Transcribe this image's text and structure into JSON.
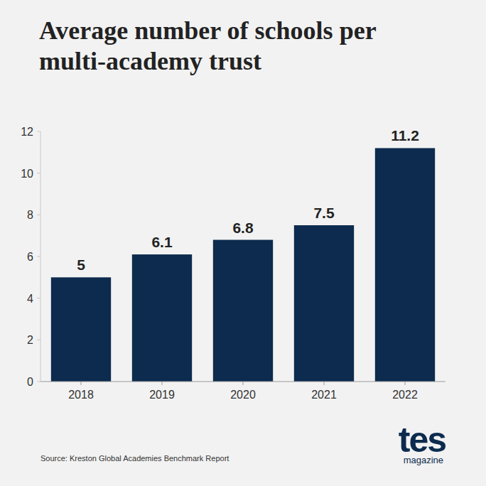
{
  "chart_data": {
    "type": "bar",
    "title": "Average number of schools per multi-academy trust",
    "categories": [
      "2018",
      "2019",
      "2020",
      "2021",
      "2022"
    ],
    "values": [
      5,
      6.1,
      6.8,
      7.5,
      11.2
    ],
    "color": "#0c2b4e",
    "ylim": [
      0,
      12
    ],
    "yticks": [
      0,
      2,
      4,
      6,
      8,
      10,
      12
    ],
    "grid": false,
    "data_labels": true,
    "source": "Source: Kreston Global Academies Benchmark Report",
    "annotations": [
      "tes",
      "magazine"
    ]
  }
}
